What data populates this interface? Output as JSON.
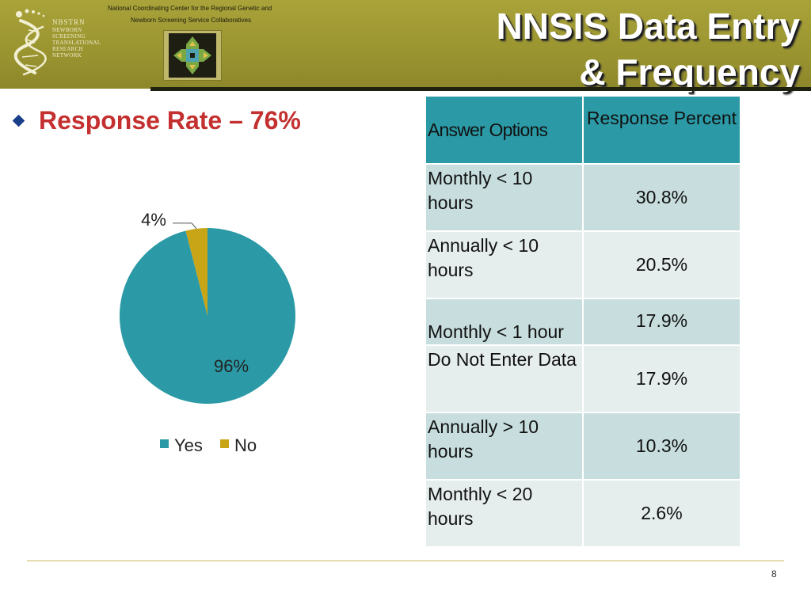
{
  "header": {
    "org_line1": "National Coordinating Center for the Regional Genetic and",
    "org_line2": "Newborn Screening Service Collaboratives",
    "logo": {
      "name": "NBSTRN",
      "lines": [
        "Newborn",
        "Screening",
        "Translational",
        "Research",
        "Network"
      ]
    },
    "title_line1": "NNSIS Data Entry",
    "title_line2": "& Frequency"
  },
  "bullet": {
    "text": "Response Rate – 76%"
  },
  "chart_data": {
    "type": "pie",
    "categories": [
      "Yes",
      "No"
    ],
    "values": [
      96,
      4
    ],
    "labels": [
      "96%",
      "4%"
    ],
    "colors": [
      "#2b9aa6",
      "#c8a417"
    ],
    "legend": "bottom"
  },
  "table": {
    "headers": [
      "Answer Options",
      "Response Percent"
    ],
    "rows": [
      {
        "option": "Monthly < 10 hours",
        "percent": "30.8%"
      },
      {
        "option": "Annually < 10 hours",
        "percent": "20.5%"
      },
      {
        "option": "Monthly < 1 hour",
        "percent": "17.9%"
      },
      {
        "option": "Do Not Enter Data",
        "percent": "17.9%"
      },
      {
        "option": "Annually > 10 hours",
        "percent": "10.3%"
      },
      {
        "option": "Monthly < 20 hours",
        "percent": "2.6%"
      }
    ]
  },
  "footer": {
    "page": "8"
  },
  "colors": {
    "header": "#a29c35",
    "accent_red": "#c3302f",
    "teal": "#2b9aa6",
    "gold": "#c8a417"
  }
}
